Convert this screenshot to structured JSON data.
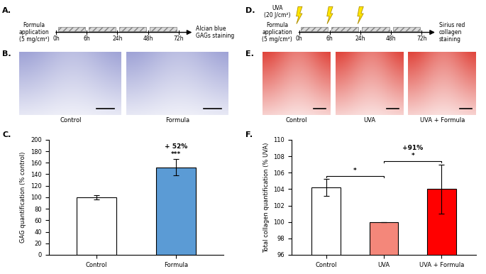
{
  "panels": [
    {
      "label": "A.",
      "type": "timeline",
      "treatment": "Formula\napplication\n(5 mg/cm²)",
      "timepoints": [
        "0h",
        "6h",
        "24h",
        "48h",
        "72h"
      ],
      "endpoint": "Alcian blue\nGAGs staining"
    },
    {
      "label": "B.",
      "type": "images",
      "captions": [
        "Control",
        "Formula"
      ],
      "color": "#9fa3d6"
    },
    {
      "label": "D.",
      "type": "timeline",
      "treatment": "Formula\napplication\n(5 mg/cm²)",
      "irradiation": "UVA\n(20 J/cm²)",
      "irradiation_timepoints": [
        "0h",
        "6h",
        "24h"
      ],
      "timepoints": [
        "0h",
        "6h",
        "24h",
        "48h",
        "72h"
      ],
      "endpoint": "Sirius red\ncollagen\nstaining"
    },
    {
      "label": "E.",
      "type": "images",
      "captions": [
        "Control",
        "UVA",
        "UVA + Formula"
      ],
      "color": "#e0453c"
    }
  ],
  "chart_data": [
    {
      "label": "C.",
      "type": "bar",
      "categories": [
        "Control",
        "Formula"
      ],
      "values": [
        100,
        152
      ],
      "errors": [
        4,
        14
      ],
      "colors": [
        "#ffffff",
        "#5b9bd5"
      ],
      "ylabel": "GAG quantification (% control)",
      "ylim": [
        0,
        200
      ],
      "yticks": [
        0,
        20,
        40,
        60,
        80,
        100,
        120,
        140,
        160,
        180,
        200
      ],
      "annotations": [
        {
          "category": "Formula",
          "texts": [
            "+ 52%",
            "***"
          ]
        }
      ]
    },
    {
      "label": "F.",
      "type": "bar",
      "categories": [
        "Control",
        "UVA",
        "UVA + Formula"
      ],
      "values": [
        104.2,
        100,
        104.0
      ],
      "errors": [
        1.0,
        0,
        3.0
      ],
      "colors": [
        "#ffffff",
        "#f4877a",
        "#ff0000"
      ],
      "ylabel": "Total collagen quantification (% UVA)",
      "ylim": [
        96,
        110
      ],
      "yticks": [
        96,
        98,
        100,
        102,
        104,
        106,
        108,
        110
      ],
      "comparisons": [
        {
          "between": [
            "Control",
            "UVA"
          ],
          "texts": [
            "*"
          ]
        },
        {
          "between": [
            "UVA",
            "UVA + Formula"
          ],
          "texts": [
            "+91%",
            "*"
          ]
        }
      ]
    }
  ]
}
